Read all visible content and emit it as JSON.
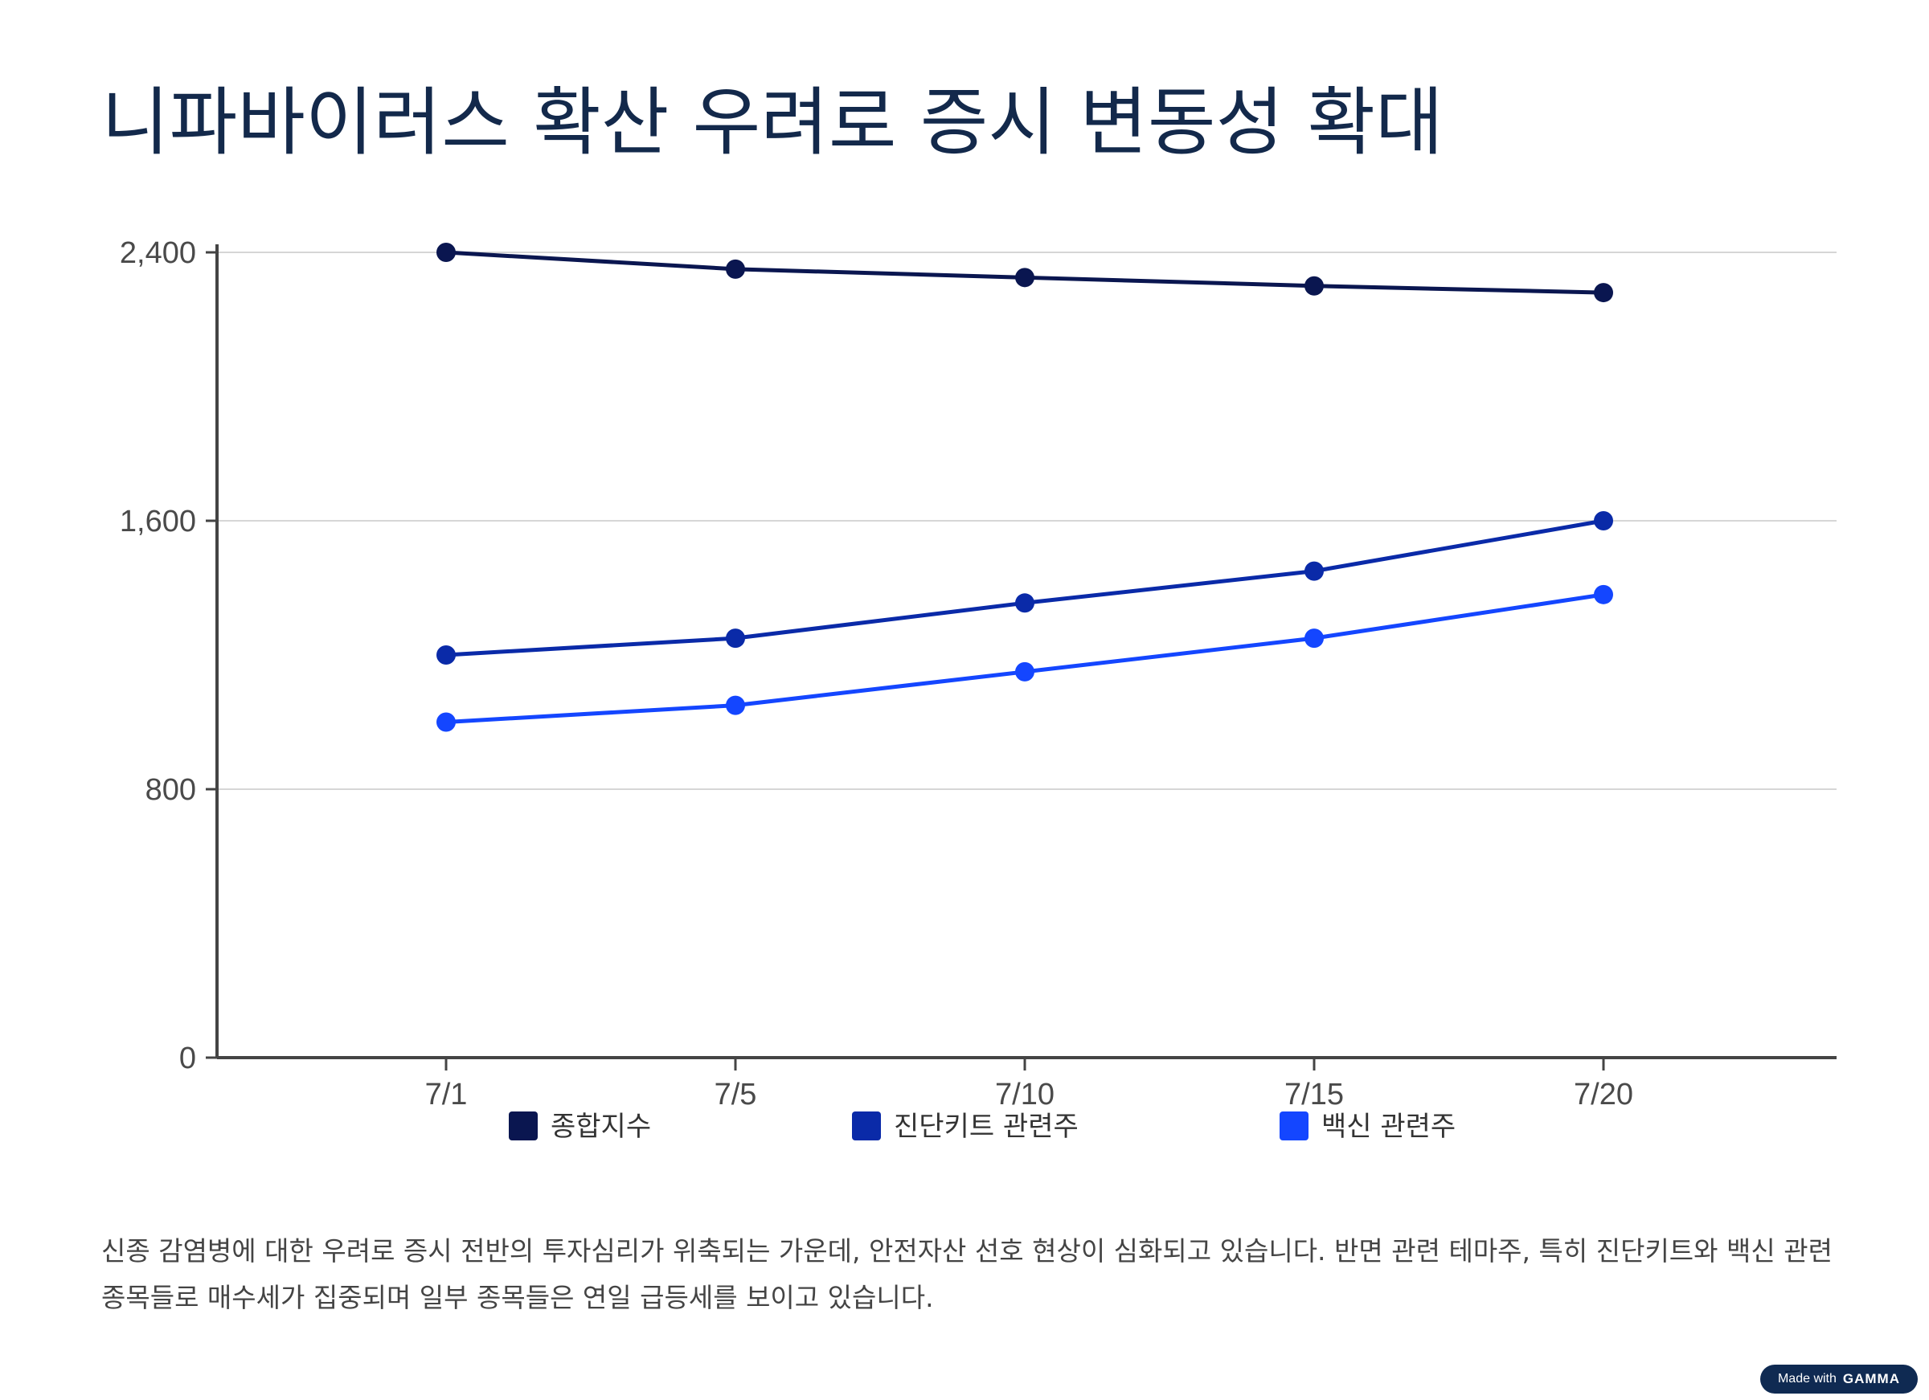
{
  "title": "니파바이러스 확산 우려로 증시 변동성 확대",
  "description": "신종 감염병에 대한 우려로 증시 전반의 투자심리가 위축되는 가운데, 안전자산 선호 현상이 심화되고 있습니다. 반면 관련 테마주, 특히 진단키트와 백신 관련 종목들로 매수세가 집중되며 일부 종목들은 연일 급등세를 보이고 있습니다.",
  "badge": {
    "made_with": "Made with",
    "brand": "GAMMA"
  },
  "chart_data": {
    "type": "line",
    "categories": [
      "7/1",
      "7/5",
      "7/10",
      "7/15",
      "7/20"
    ],
    "ylim": [
      0,
      2400
    ],
    "yticks": [
      0,
      800,
      1600,
      2400
    ],
    "ytick_labels": [
      "0",
      "800",
      "1,600",
      "2,400"
    ],
    "grid": true,
    "legend_position": "bottom",
    "series": [
      {
        "name": "종합지수",
        "color": "#0a1650",
        "values": [
          2400,
          2350,
          2325,
          2300,
          2280
        ]
      },
      {
        "name": "진단키트 관련주",
        "color": "#0a2aa8",
        "values": [
          1200,
          1250,
          1355,
          1450,
          1600
        ]
      },
      {
        "name": "백신 관련주",
        "color": "#1446ff",
        "values": [
          1000,
          1050,
          1150,
          1250,
          1380
        ]
      }
    ]
  }
}
